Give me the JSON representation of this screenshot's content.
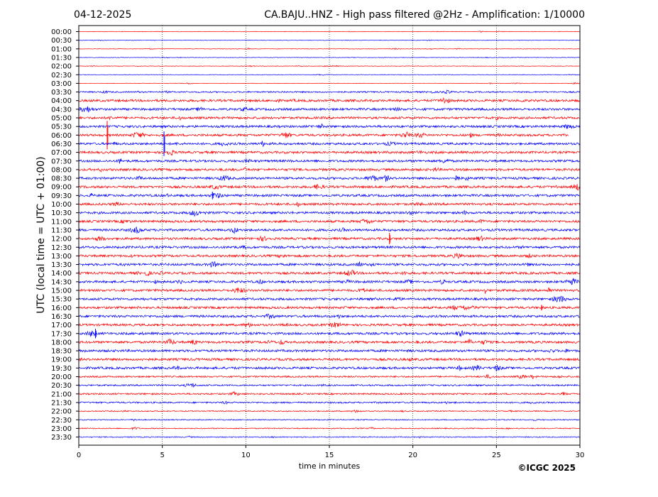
{
  "chart_data": {
    "type": "line",
    "date": "04-12-2025",
    "title": "CA.BAJU..HNZ - High pass filtered @2Hz - Amplification: 1/10000",
    "ylabel": "UTC (local time = UTC + 01:00)",
    "xlabel": "time in minutes",
    "xlim": [
      0,
      30
    ],
    "x_ticks": [
      0,
      5,
      10,
      15,
      20,
      25,
      30
    ],
    "x_tick_labels": [
      "0",
      "5",
      "10",
      "15",
      "20",
      "25",
      "30"
    ],
    "grid": "vertical dotted at 5, 10, 15, 20, 25",
    "row_labels": [
      "00:00",
      "00:30",
      "01:00",
      "01:30",
      "02:00",
      "02:30",
      "03:00",
      "03:30",
      "04:00",
      "04:30",
      "05:00",
      "05:30",
      "06:00",
      "06:30",
      "07:00",
      "07:30",
      "08:00",
      "08:30",
      "09:00",
      "09:30",
      "10:00",
      "10:30",
      "11:00",
      "11:30",
      "12:00",
      "12:30",
      "13:00",
      "13:30",
      "14:00",
      "14:30",
      "15:00",
      "15:30",
      "16:00",
      "16:30",
      "17:00",
      "17:30",
      "18:00",
      "18:30",
      "19:00",
      "19:30",
      "20:00",
      "20:30",
      "21:00",
      "21:30",
      "22:00",
      "22:30",
      "23:00",
      "23:30"
    ],
    "series_colors": {
      "even": "#ff0000",
      "odd": "#0000ff"
    },
    "trace_end_minutes": {
      "06:00": 29.3
    },
    "events": [
      {
        "row": "06:00",
        "minute": 1.7,
        "amplitude": 1.5
      },
      {
        "row": "06:30",
        "minute": 5.1,
        "amplitude": 1.3
      },
      {
        "row": "09:30",
        "minute": 8.0,
        "amplitude": 0.4
      },
      {
        "row": "12:00",
        "minute": 18.6,
        "amplitude": 0.6
      },
      {
        "row": "16:00",
        "minute": 27.7,
        "amplitude": 0.3
      },
      {
        "row": "17:30",
        "minute": 1.0,
        "amplitude": 0.5
      }
    ],
    "copyright": "©ICGC 2025"
  }
}
